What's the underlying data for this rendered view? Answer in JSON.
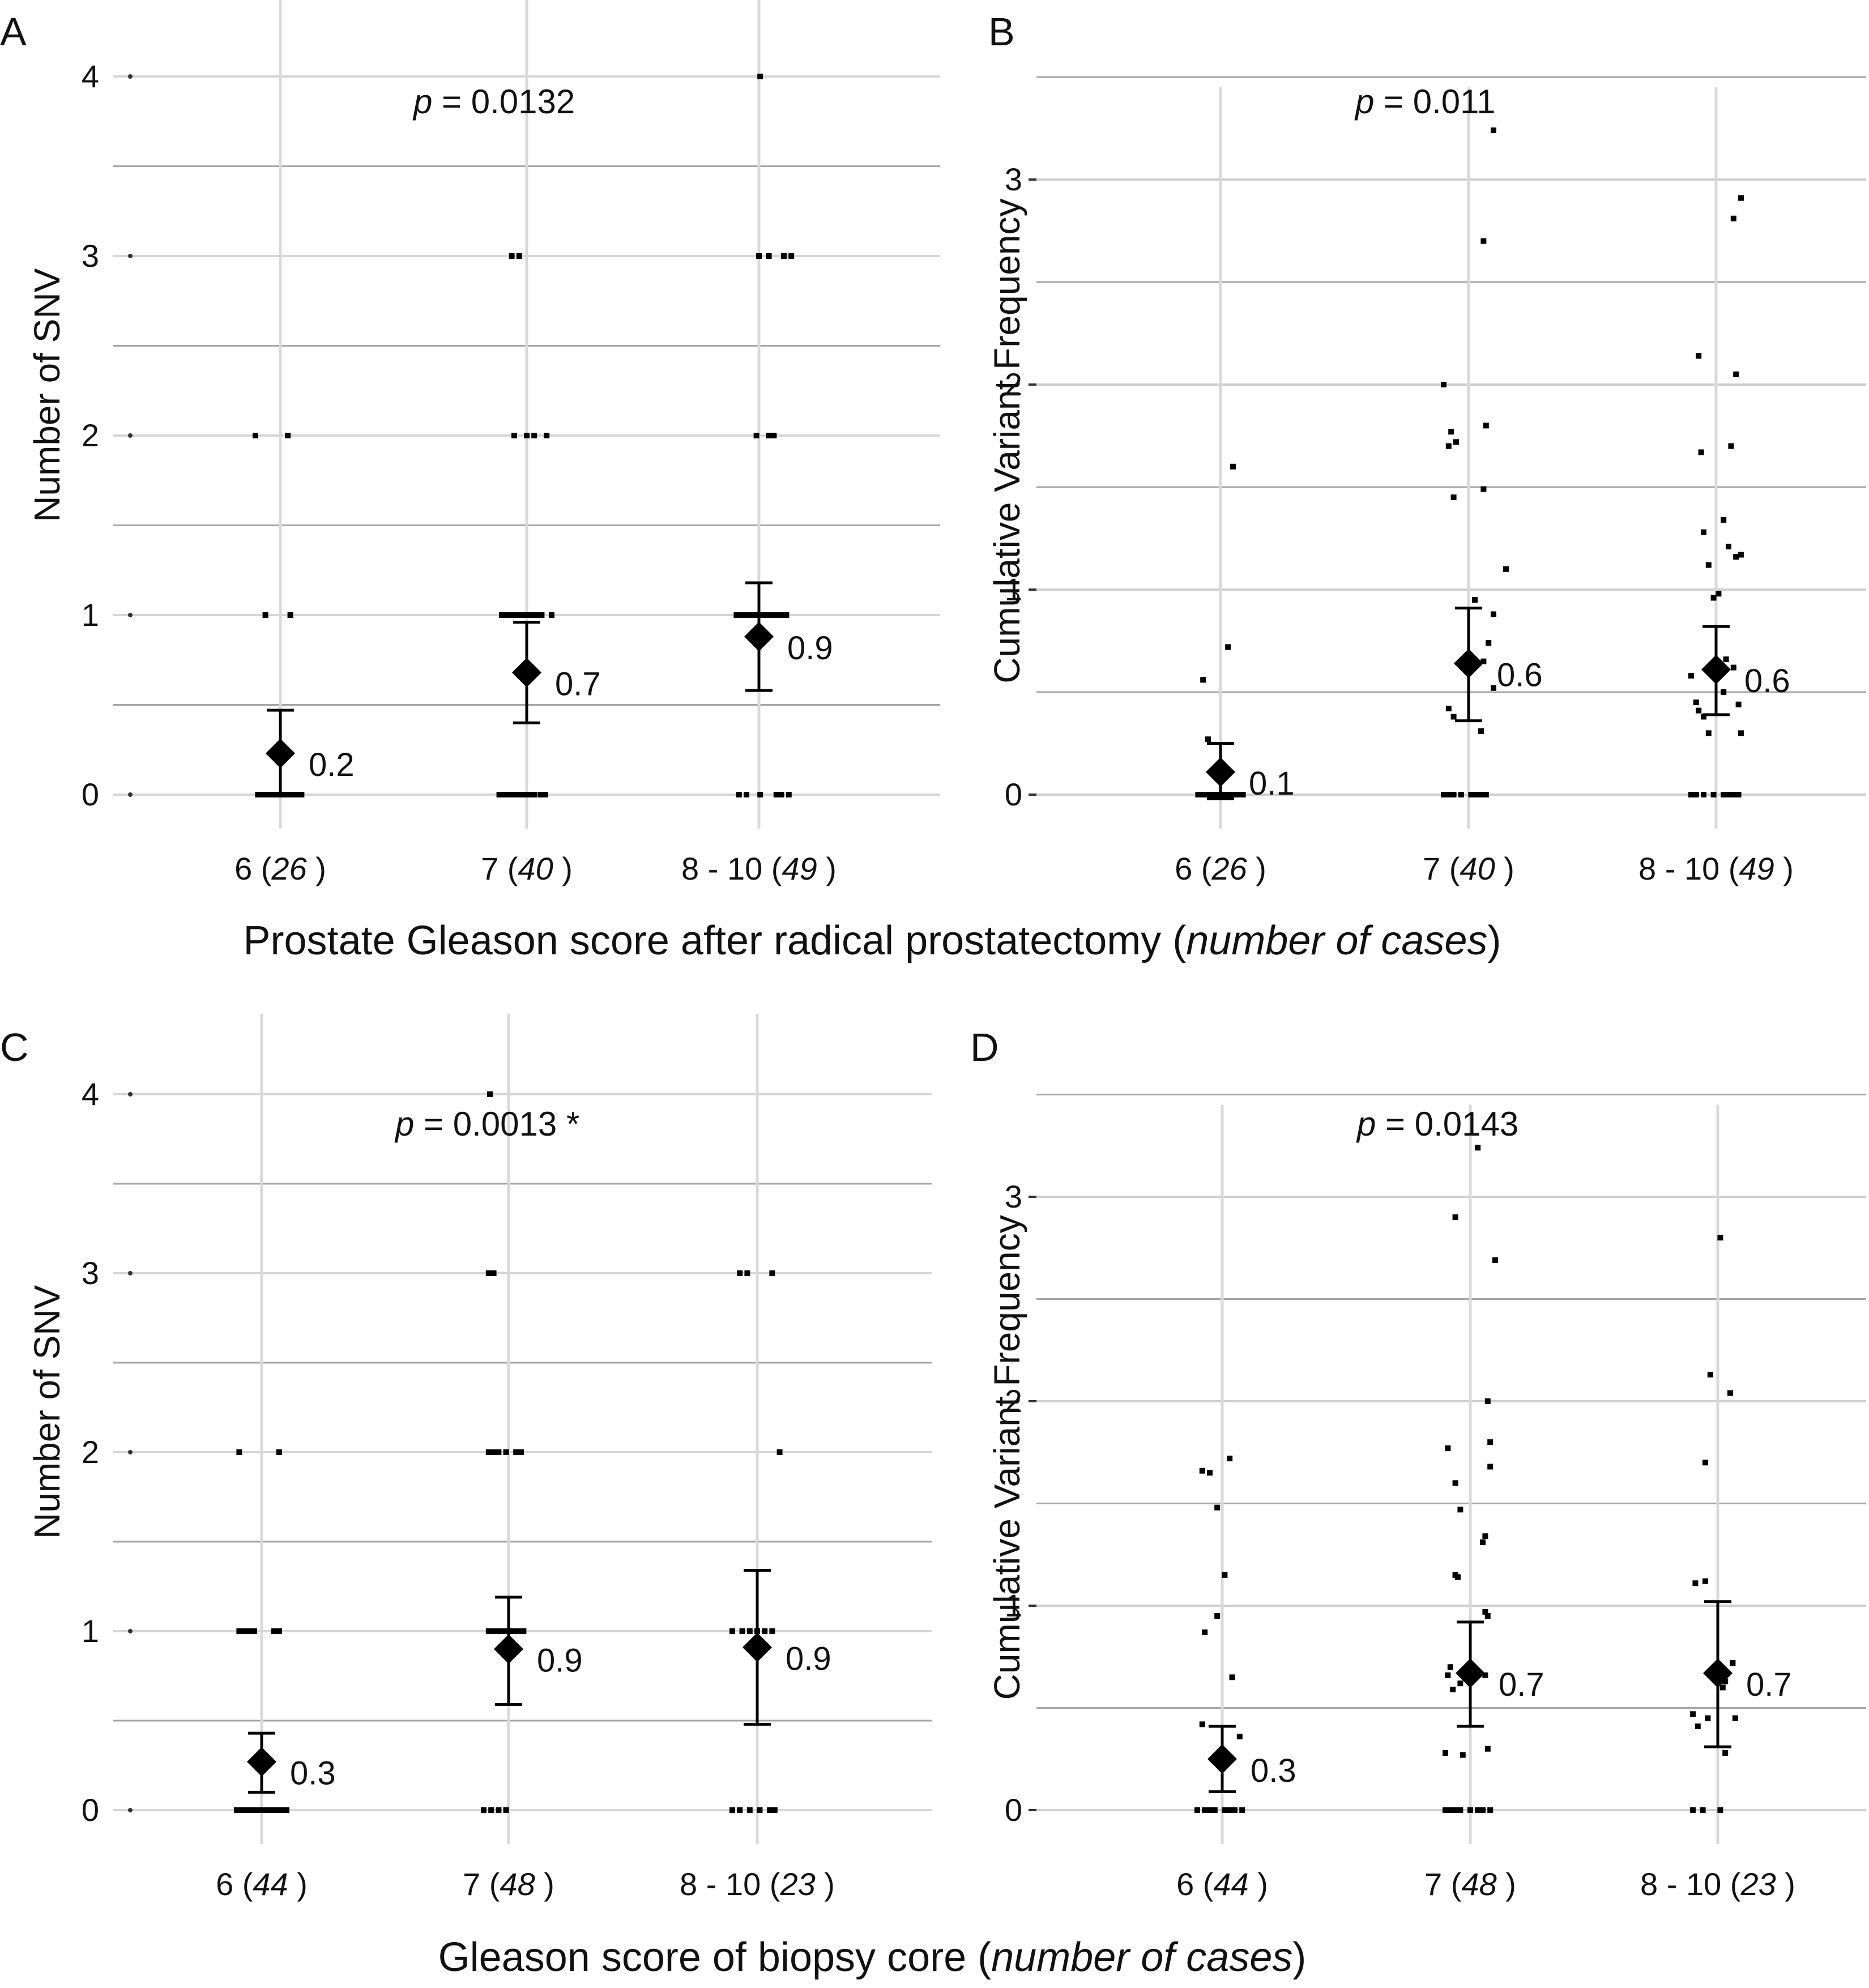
{
  "figure": {
    "row1_xlabel": {
      "main": "Prostate Gleason score after radical prostatectomy (",
      "italic": "number of cases",
      "close": ")"
    },
    "row2_xlabel": {
      "main": "Gleason score of biopsy core (",
      "italic": "number of cases",
      "close": ")"
    },
    "colors": {
      "grid_vertical": "#d9d9d9",
      "grid_horizontal": "#a6a6a6",
      "points": "#000000"
    }
  },
  "chart_data": [
    {
      "id": "A",
      "letter": "A",
      "type": "scatter",
      "ylabel": "Number of SNV",
      "ylim": [
        0,
        4
      ],
      "yticks": [
        0,
        1,
        2,
        3,
        4
      ],
      "p_label": "p =",
      "p_value": "0.0132",
      "categories": [
        {
          "label": "6 (",
          "n": "26",
          "close": " )"
        },
        {
          "label": "7 (",
          "n": "40",
          "close": " )"
        },
        {
          "label": "8 - 10 (",
          "n": "49",
          "close": " )"
        }
      ],
      "means": [
        0.23,
        0.68,
        0.88
      ],
      "ci": [
        [
          0,
          0.47
        ],
        [
          0.4,
          0.96
        ],
        [
          0.58,
          1.18
        ]
      ],
      "mean_labels": [
        "0.2",
        "0.7",
        "0.9"
      ],
      "points": [
        [
          [
            -0.18,
            0
          ],
          [
            -0.14,
            0
          ],
          [
            -0.11,
            0
          ],
          [
            -0.08,
            0
          ],
          [
            -0.05,
            0
          ],
          [
            -0.02,
            0
          ],
          [
            0.01,
            0
          ],
          [
            0.04,
            0
          ],
          [
            0.07,
            0
          ],
          [
            0.1,
            0
          ],
          [
            0.14,
            0
          ],
          [
            0.17,
            0
          ],
          [
            -0.12,
            1
          ],
          [
            0.08,
            1
          ],
          [
            -0.2,
            2
          ],
          [
            0.06,
            2
          ]
        ],
        [
          [
            -0.22,
            0
          ],
          [
            -0.18,
            0
          ],
          [
            -0.14,
            0
          ],
          [
            -0.1,
            0
          ],
          [
            -0.06,
            0
          ],
          [
            -0.02,
            0
          ],
          [
            0.02,
            0
          ],
          [
            0.06,
            0
          ],
          [
            0.11,
            0
          ],
          [
            0.15,
            0
          ],
          [
            -0.2,
            1
          ],
          [
            -0.16,
            1
          ],
          [
            -0.12,
            1
          ],
          [
            -0.08,
            1
          ],
          [
            -0.04,
            1
          ],
          [
            0,
            1
          ],
          [
            0.04,
            1
          ],
          [
            0.08,
            1
          ],
          [
            0.12,
            1
          ],
          [
            0.2,
            1
          ],
          [
            -0.1,
            2
          ],
          [
            0,
            2
          ],
          [
            0.06,
            2
          ],
          [
            0.16,
            2
          ],
          [
            -0.12,
            3
          ],
          [
            -0.06,
            3
          ]
        ],
        [
          [
            -0.16,
            0
          ],
          [
            -0.1,
            0
          ],
          [
            0.01,
            0
          ],
          [
            0.14,
            0
          ],
          [
            0.18,
            0
          ],
          [
            0.24,
            0
          ],
          [
            -0.18,
            1
          ],
          [
            -0.14,
            1
          ],
          [
            -0.1,
            1
          ],
          [
            -0.06,
            1
          ],
          [
            -0.02,
            1
          ],
          [
            0.02,
            1
          ],
          [
            0.06,
            1
          ],
          [
            0.1,
            1
          ],
          [
            0.14,
            1
          ],
          [
            0.18,
            1
          ],
          [
            0.22,
            1
          ],
          [
            -0.02,
            2
          ],
          [
            0.08,
            2
          ],
          [
            0.12,
            2
          ],
          [
            0,
            3
          ],
          [
            0.08,
            3
          ],
          [
            0.2,
            3
          ],
          [
            0.26,
            3
          ],
          [
            0.01,
            4
          ]
        ]
      ]
    },
    {
      "id": "B",
      "letter": "B",
      "type": "scatter",
      "ylabel": "Cumulative Variant Frequency",
      "ylim": [
        0,
        3.5
      ],
      "yticks": [
        0,
        1,
        2,
        3
      ],
      "p_label": "p =",
      "p_value": "0.011",
      "categories": [
        {
          "label": "6 (",
          "n": "26",
          "close": " )"
        },
        {
          "label": "7 (",
          "n": "40",
          "close": " )"
        },
        {
          "label": "8 - 10 (",
          "n": "49",
          "close": " )"
        }
      ],
      "means": [
        0.11,
        0.64,
        0.61
      ],
      "ci": [
        [
          -0.02,
          0.25
        ],
        [
          0.36,
          0.91
        ],
        [
          0.39,
          0.82
        ]
      ],
      "mean_labels": [
        "0.1",
        "0.6",
        "0.6"
      ],
      "points": [
        [
          [
            -0.18,
            0
          ],
          [
            -0.14,
            0
          ],
          [
            -0.1,
            0
          ],
          [
            -0.06,
            0
          ],
          [
            -0.02,
            0
          ],
          [
            0.02,
            0
          ],
          [
            0.06,
            0
          ],
          [
            0.1,
            0
          ],
          [
            0.14,
            0
          ],
          [
            0.18,
            0
          ],
          [
            -0.1,
            0.27
          ],
          [
            -0.14,
            0.56
          ],
          [
            0.06,
            0.72
          ],
          [
            0.1,
            1.6
          ]
        ],
        [
          [
            -0.2,
            0
          ],
          [
            -0.16,
            0
          ],
          [
            -0.12,
            0
          ],
          [
            -0.06,
            0
          ],
          [
            0.02,
            0
          ],
          [
            0.06,
            0
          ],
          [
            0.1,
            0
          ],
          [
            0.14,
            0
          ],
          [
            -0.16,
            0.42
          ],
          [
            -0.12,
            0.38
          ],
          [
            0.1,
            0.31
          ],
          [
            0.12,
            0.65
          ],
          [
            0.16,
            0.74
          ],
          [
            0.05,
            0.95
          ],
          [
            0.2,
            0.52
          ],
          [
            -0.12,
            1.45
          ],
          [
            -0.1,
            1.72
          ],
          [
            -0.16,
            1.7
          ],
          [
            -0.2,
            2.0
          ],
          [
            -0.14,
            1.77
          ],
          [
            0.14,
            1.8
          ],
          [
            0.12,
            1.49
          ],
          [
            0.3,
            1.1
          ],
          [
            0.2,
            0.88
          ],
          [
            0.12,
            2.7
          ],
          [
            0.2,
            3.24
          ]
        ],
        [
          [
            -0.2,
            0
          ],
          [
            -0.16,
            0
          ],
          [
            -0.1,
            0
          ],
          [
            -0.02,
            0
          ],
          [
            0.06,
            0
          ],
          [
            0.1,
            0
          ],
          [
            0.14,
            0
          ],
          [
            0.18,
            0
          ],
          [
            -0.2,
            0.58
          ],
          [
            -0.16,
            0.45
          ],
          [
            -0.1,
            0.38
          ],
          [
            -0.06,
            0.3
          ],
          [
            -0.14,
            0.41
          ],
          [
            0.06,
            0.5
          ],
          [
            0.14,
            0.62
          ],
          [
            0.18,
            0.44
          ],
          [
            0.2,
            0.3
          ],
          [
            0.08,
            0.66
          ],
          [
            -0.02,
            0.96
          ],
          [
            0.02,
            0.98
          ],
          [
            -0.1,
            1.28
          ],
          [
            -0.06,
            1.12
          ],
          [
            0.06,
            1.34
          ],
          [
            0.1,
            1.21
          ],
          [
            0.16,
            1.16
          ],
          [
            0.2,
            1.17
          ],
          [
            0.12,
            1.7
          ],
          [
            -0.12,
            1.67
          ],
          [
            -0.14,
            2.14
          ],
          [
            0.16,
            2.05
          ],
          [
            0.14,
            2.81
          ],
          [
            0.2,
            2.91
          ]
        ]
      ]
    },
    {
      "id": "C",
      "letter": "C",
      "type": "scatter",
      "ylabel": "Number of SNV",
      "ylim": [
        0,
        4
      ],
      "yticks": [
        0,
        1,
        2,
        3,
        4
      ],
      "p_label": "p =",
      "p_value": "0.0013 *",
      "categories": [
        {
          "label": "6 (",
          "n": "44",
          "close": " )"
        },
        {
          "label": "7 (",
          "n": "48",
          "close": " )"
        },
        {
          "label": "8 - 10 (",
          "n": "23",
          "close": " )"
        }
      ],
      "means": [
        0.27,
        0.9,
        0.91
      ],
      "ci": [
        [
          0.1,
          0.43
        ],
        [
          0.59,
          1.19
        ],
        [
          0.48,
          1.34
        ]
      ],
      "mean_labels": [
        "0.3",
        "0.9",
        "0.9"
      ],
      "points": [
        [
          [
            -0.2,
            0
          ],
          [
            -0.16,
            0
          ],
          [
            -0.12,
            0
          ],
          [
            -0.08,
            0
          ],
          [
            -0.04,
            0
          ],
          [
            0,
            0
          ],
          [
            0.04,
            0
          ],
          [
            0.08,
            0
          ],
          [
            0.12,
            0
          ],
          [
            0.16,
            0
          ],
          [
            0.2,
            0
          ],
          [
            -0.18,
            1
          ],
          [
            -0.14,
            1
          ],
          [
            -0.1,
            1
          ],
          [
            -0.06,
            1
          ],
          [
            0.1,
            1
          ],
          [
            0.14,
            1
          ],
          [
            -0.18,
            2
          ],
          [
            0.14,
            2
          ]
        ],
        [
          [
            -0.2,
            0
          ],
          [
            -0.14,
            0
          ],
          [
            -0.08,
            0
          ],
          [
            -0.02,
            0
          ],
          [
            -0.16,
            1
          ],
          [
            -0.12,
            1
          ],
          [
            -0.08,
            1
          ],
          [
            -0.04,
            1
          ],
          [
            0,
            1
          ],
          [
            0.04,
            1
          ],
          [
            0.08,
            1
          ],
          [
            0.12,
            1
          ],
          [
            -0.16,
            2
          ],
          [
            -0.12,
            2
          ],
          [
            -0.08,
            2
          ],
          [
            -0.02,
            2
          ],
          [
            0.06,
            2
          ],
          [
            0.1,
            2
          ],
          [
            -0.16,
            3
          ],
          [
            -0.12,
            3
          ],
          [
            -0.15,
            4
          ]
        ],
        [
          [
            -0.2,
            0
          ],
          [
            -0.14,
            0
          ],
          [
            -0.06,
            0
          ],
          [
            0.02,
            0
          ],
          [
            0.1,
            0
          ],
          [
            0.14,
            0
          ],
          [
            -0.2,
            1
          ],
          [
            -0.12,
            1
          ],
          [
            -0.06,
            1
          ],
          [
            0,
            1
          ],
          [
            0.06,
            1
          ],
          [
            0.12,
            1
          ],
          [
            -0.14,
            3
          ],
          [
            -0.08,
            3
          ],
          [
            0.12,
            3
          ],
          [
            0.18,
            2
          ]
        ]
      ]
    },
    {
      "id": "D",
      "letter": "D",
      "type": "scatter",
      "ylabel": "Cumulative Variant Frequency",
      "ylim": [
        0,
        3.5
      ],
      "yticks": [
        0,
        1,
        2,
        3
      ],
      "p_label": "p =",
      "p_value": "0.0143",
      "categories": [
        {
          "label": "6 (",
          "n": "44",
          "close": " )"
        },
        {
          "label": "7 (",
          "n": "48",
          "close": " )"
        },
        {
          "label": "8 - 10 (",
          "n": "23",
          "close": " )"
        }
      ],
      "means": [
        0.25,
        0.67,
        0.67
      ],
      "ci": [
        [
          0.09,
          0.41
        ],
        [
          0.41,
          0.92
        ],
        [
          0.31,
          1.02
        ]
      ],
      "mean_labels": [
        "0.3",
        "0.7",
        "0.7"
      ],
      "points": [
        [
          [
            -0.2,
            0
          ],
          [
            -0.14,
            0
          ],
          [
            -0.1,
            0
          ],
          [
            -0.06,
            0
          ],
          [
            0.02,
            0
          ],
          [
            0.06,
            0
          ],
          [
            0.1,
            0
          ],
          [
            0.16,
            0
          ],
          [
            -0.16,
            0.42
          ],
          [
            0.14,
            0.36
          ],
          [
            0.08,
            0.65
          ],
          [
            -0.14,
            0.87
          ],
          [
            -0.04,
            0.95
          ],
          [
            0.02,
            1.15
          ],
          [
            -0.04,
            1.48
          ],
          [
            -0.1,
            1.65
          ],
          [
            -0.16,
            1.66
          ],
          [
            0.06,
            1.72
          ]
        ],
        [
          [
            -0.2,
            0
          ],
          [
            -0.16,
            0
          ],
          [
            -0.12,
            0
          ],
          [
            -0.08,
            0
          ],
          [
            0,
            0
          ],
          [
            0.06,
            0
          ],
          [
            0.1,
            0
          ],
          [
            0.16,
            0
          ],
          [
            -0.2,
            0.28
          ],
          [
            -0.06,
            0.27
          ],
          [
            0.14,
            0.3
          ],
          [
            -0.18,
            0.66
          ],
          [
            -0.16,
            0.7
          ],
          [
            -0.14,
            0.59
          ],
          [
            -0.08,
            0.62
          ],
          [
            0.12,
            0.66
          ],
          [
            0.12,
            0.97
          ],
          [
            0.14,
            0.95
          ],
          [
            -0.12,
            1.15
          ],
          [
            -0.1,
            1.14
          ],
          [
            0.1,
            1.31
          ],
          [
            0.12,
            1.34
          ],
          [
            -0.08,
            1.47
          ],
          [
            -0.12,
            1.6
          ],
          [
            -0.18,
            1.77
          ],
          [
            0.16,
            1.8
          ],
          [
            0.16,
            1.68
          ],
          [
            0.14,
            2.0
          ],
          [
            -0.12,
            2.9
          ],
          [
            0.2,
            2.69
          ],
          [
            0.06,
            3.24
          ]
        ],
        [
          [
            -0.2,
            0
          ],
          [
            -0.12,
            0
          ],
          [
            0.02,
            0
          ],
          [
            -0.2,
            0.47
          ],
          [
            -0.16,
            0.41
          ],
          [
            -0.08,
            0.45
          ],
          [
            0.04,
            0.6
          ],
          [
            0.06,
            0.63
          ],
          [
            0.12,
            0.72
          ],
          [
            0.06,
            0.28
          ],
          [
            0.14,
            0.45
          ],
          [
            -0.18,
            1.11
          ],
          [
            -0.1,
            1.12
          ],
          [
            -0.1,
            1.7
          ],
          [
            -0.06,
            2.13
          ],
          [
            0.1,
            2.04
          ],
          [
            0.02,
            2.8
          ]
        ]
      ]
    }
  ]
}
